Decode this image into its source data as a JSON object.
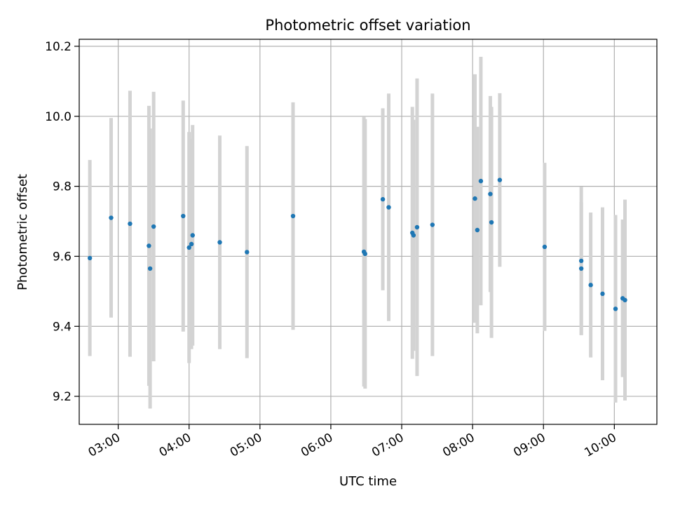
{
  "chart_data": {
    "type": "scatter",
    "title": "Photometric offset variation",
    "xlabel": "UTC time",
    "ylabel": "Photometric offset",
    "x_ticks": [
      "03:00",
      "04:00",
      "05:00",
      "06:00",
      "07:00",
      "08:00",
      "09:00",
      "10:00"
    ],
    "y_ticks": [
      "9.2",
      "9.4",
      "9.6",
      "9.8",
      "10.0",
      "10.2"
    ],
    "xlim": [
      "02:27",
      "10:36"
    ],
    "ylim": [
      9.12,
      10.22
    ],
    "grid": true,
    "colors": {
      "points": "#1f77b4",
      "error_bars": "#d3d3d3",
      "grid": "#b0b0b0"
    },
    "points": [
      {
        "x": "02:36",
        "y": 9.595,
        "err": 0.28
      },
      {
        "x": "02:54",
        "y": 9.71,
        "err": 0.285
      },
      {
        "x": "03:10",
        "y": 9.693,
        "err": 0.38
      },
      {
        "x": "03:26",
        "y": 9.63,
        "err": 0.4
      },
      {
        "x": "03:27",
        "y": 9.565,
        "err": 0.4
      },
      {
        "x": "03:30",
        "y": 9.685,
        "err": 0.385
      },
      {
        "x": "03:55",
        "y": 9.715,
        "err": 0.33
      },
      {
        "x": "04:00",
        "y": 9.625,
        "err": 0.33
      },
      {
        "x": "04:02",
        "y": 9.635,
        "err": 0.3
      },
      {
        "x": "04:03",
        "y": 9.66,
        "err": 0.315
      },
      {
        "x": "04:26",
        "y": 9.64,
        "err": 0.305
      },
      {
        "x": "04:49",
        "y": 9.612,
        "err": 0.303
      },
      {
        "x": "05:28",
        "y": 9.715,
        "err": 0.325
      },
      {
        "x": "06:28",
        "y": 9.613,
        "err": 0.385
      },
      {
        "x": "06:29",
        "y": 9.607,
        "err": 0.385
      },
      {
        "x": "06:44",
        "y": 9.763,
        "err": 0.26
      },
      {
        "x": "06:49",
        "y": 9.74,
        "err": 0.325
      },
      {
        "x": "07:09",
        "y": 9.667,
        "err": 0.36
      },
      {
        "x": "07:10",
        "y": 9.66,
        "err": 0.33
      },
      {
        "x": "07:13",
        "y": 9.683,
        "err": 0.425
      },
      {
        "x": "07:26",
        "y": 9.69,
        "err": 0.375
      },
      {
        "x": "08:02",
        "y": 9.765,
        "err": 0.355
      },
      {
        "x": "08:04",
        "y": 9.675,
        "err": 0.295
      },
      {
        "x": "08:07",
        "y": 9.815,
        "err": 0.355
      },
      {
        "x": "08:15",
        "y": 9.778,
        "err": 0.28
      },
      {
        "x": "08:16",
        "y": 9.697,
        "err": 0.33
      },
      {
        "x": "08:23",
        "y": 9.818,
        "err": 0.248
      },
      {
        "x": "09:01",
        "y": 9.627,
        "err": 0.24
      },
      {
        "x": "09:32",
        "y": 9.587,
        "err": 0.212
      },
      {
        "x": "09:32",
        "y": 9.565,
        "err": 0.19
      },
      {
        "x": "09:40",
        "y": 9.518,
        "err": 0.207
      },
      {
        "x": "09:50",
        "y": 9.493,
        "err": 0.247
      },
      {
        "x": "10:01",
        "y": 9.45,
        "err": 0.268
      },
      {
        "x": "10:07",
        "y": 9.48,
        "err": 0.225
      },
      {
        "x": "10:09",
        "y": 9.475,
        "err": 0.287
      }
    ]
  }
}
